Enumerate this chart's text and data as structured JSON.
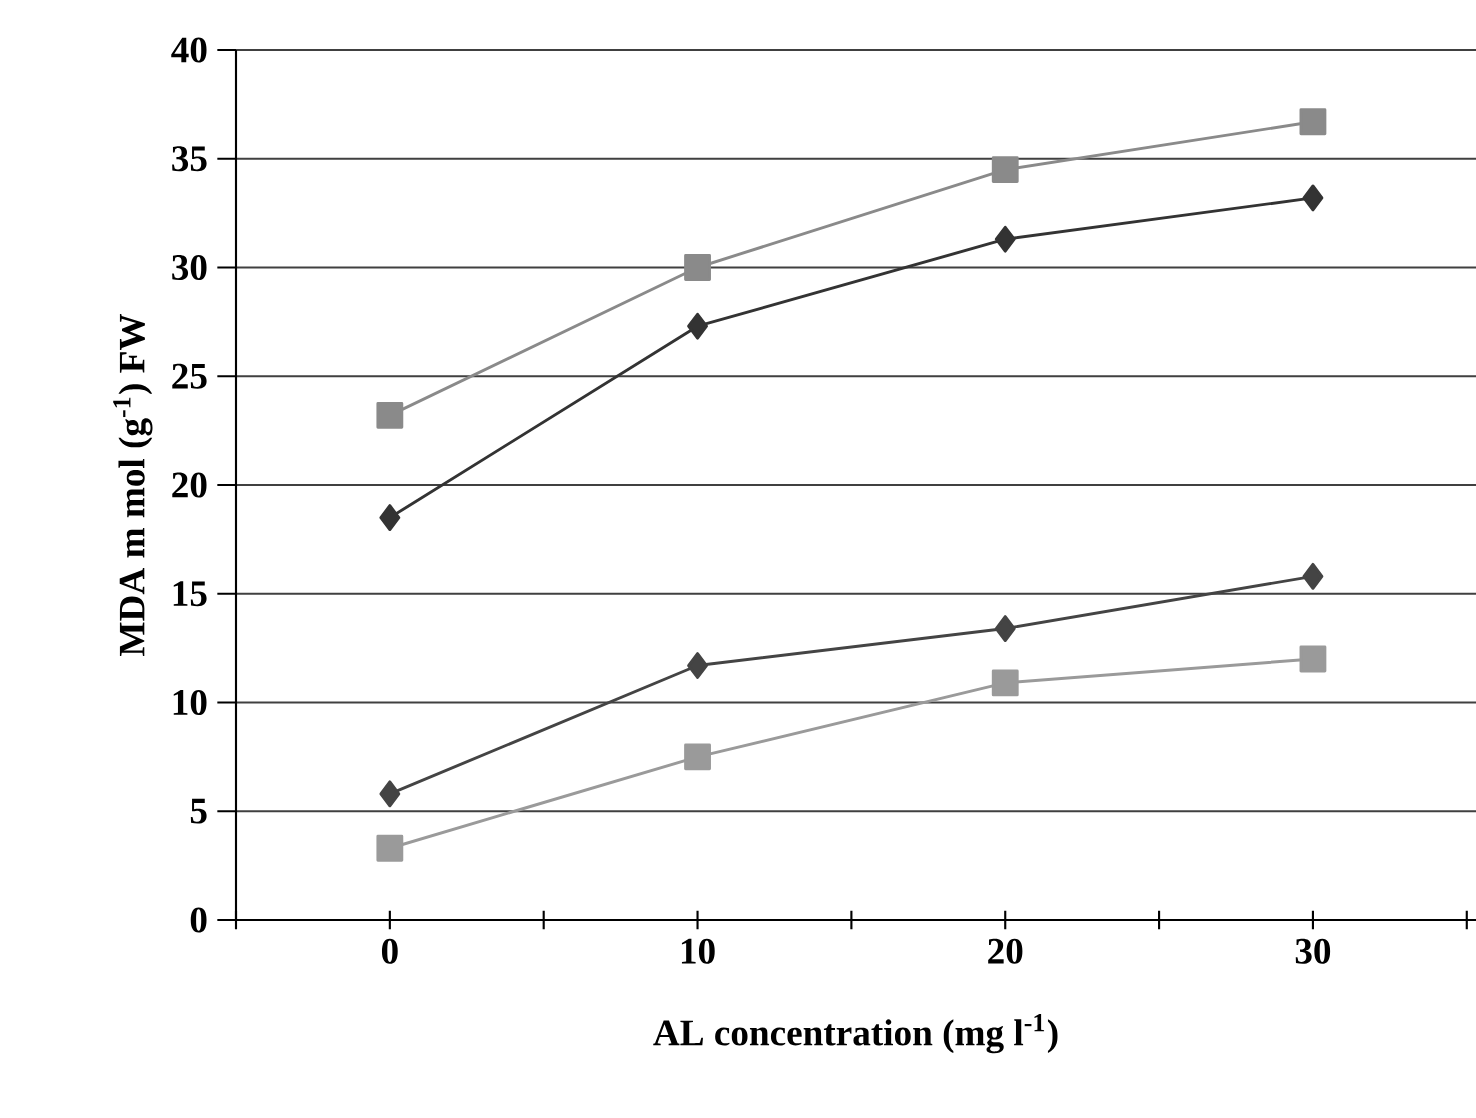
{
  "chart_data": {
    "type": "line",
    "xlabel": "AL concentration (mg l$^{-1}$)",
    "ylabel": "MDA m mol (g$^{-1}$) FW",
    "x": [
      0,
      10,
      20,
      30
    ],
    "series": [
      {
        "color": "#8a8a8a",
        "marker": "square",
        "values": [
          23.2,
          30.0,
          34.5,
          36.7
        ]
      },
      {
        "color": "#333333",
        "marker": "diamond",
        "values": [
          18.5,
          27.3,
          31.3,
          33.2
        ]
      },
      {
        "color": "#444444",
        "marker": "diamond",
        "values": [
          5.8,
          11.7,
          13.4,
          15.8
        ]
      },
      {
        "color": "#9a9a9a",
        "marker": "square",
        "values": [
          3.3,
          7.5,
          10.9,
          12.0
        ]
      }
    ],
    "xlim": [
      -5,
      35.3
    ],
    "ylim": [
      0,
      40
    ],
    "xticks": [
      {
        "value": -5,
        "label": null
      },
      0,
      {
        "value": 5,
        "label": null
      },
      10,
      {
        "value": 15,
        "label": null
      },
      20,
      {
        "value": 25,
        "label": null
      },
      30,
      {
        "value": 35,
        "label": null
      }
    ],
    "yticks": [
      0,
      5,
      10,
      15,
      20,
      25,
      30,
      35,
      40
    ],
    "grid": "y"
  }
}
